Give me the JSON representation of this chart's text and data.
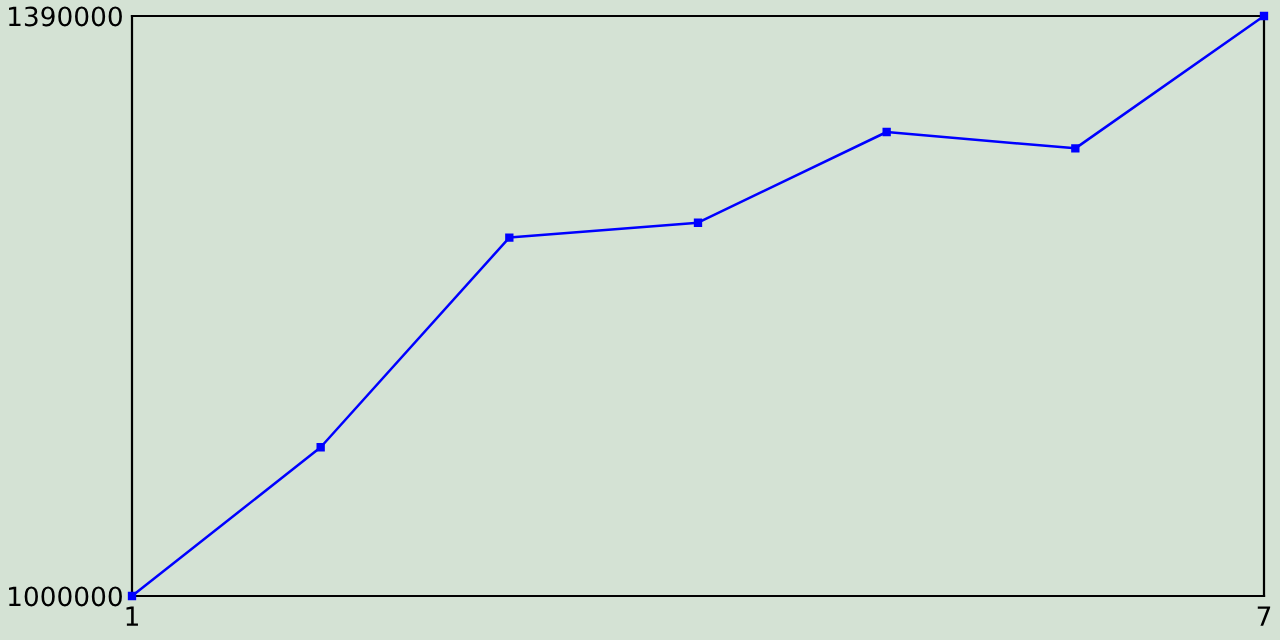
{
  "chart_data": {
    "type": "line",
    "x": [
      1,
      2,
      3,
      4,
      5,
      6,
      7
    ],
    "series": [
      {
        "color": "#0000ff",
        "values": [
          1000000,
          1100000,
          1241000,
          1251000,
          1312000,
          1301000,
          1390000
        ]
      }
    ],
    "xlim": [
      1,
      7
    ],
    "xticks": [
      1,
      7
    ],
    "ylim": [
      1000000,
      1390000
    ],
    "yticks": [
      1000000,
      1390000
    ],
    "marker": "square",
    "grid": false,
    "legend": false
  }
}
